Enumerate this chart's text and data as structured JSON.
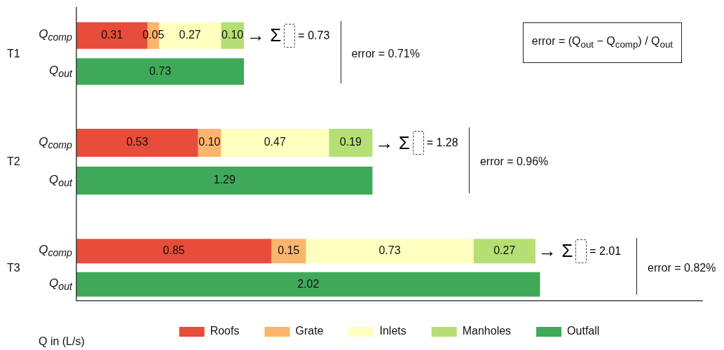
{
  "chart_data": [
    {
      "type": "bar",
      "orientation": "horizontal",
      "stacked": true,
      "ylabel": "T1",
      "categories": [
        "Q$_{comp}$",
        "Q$_{out}$"
      ],
      "tick_labels": "y",
      "legend": false,
      "series": [
        {
          "color": "#e84c3a",
          "values": [
            0.31,
            null
          ],
          "value_labels": [
            "0.31",
            null
          ]
        },
        {
          "color": "#fdb56b",
          "values": [
            0.05,
            null
          ],
          "value_labels": [
            "0.05",
            null
          ]
        },
        {
          "color": "#ffffc0",
          "values": [
            0.27,
            null
          ],
          "value_labels": [
            "0.27",
            null
          ]
        },
        {
          "color": "#b5df74",
          "values": [
            0.1,
            null
          ],
          "value_labels": [
            "0.10",
            null
          ]
        },
        {
          "color": "#3fa95a",
          "values": [
            null,
            0.73
          ],
          "value_labels": [
            null,
            "0.73"
          ]
        }
      ],
      "annotations": [
        "→ Σ = 0.73",
        "error = 0.71%",
        "error = (Q$_{out}$ − Q$_{comp}$) / Q$_{out}$"
      ]
    },
    {
      "type": "bar",
      "orientation": "horizontal",
      "stacked": true,
      "ylabel": "T2",
      "categories": [
        "Q$_{comp}$",
        "Q$_{out}$"
      ],
      "tick_labels": "y",
      "legend": false,
      "series": [
        {
          "color": "#e84c3a",
          "values": [
            0.53,
            null
          ],
          "value_labels": [
            "0.53",
            null
          ]
        },
        {
          "color": "#fdb56b",
          "values": [
            0.1,
            null
          ],
          "value_labels": [
            "0.10",
            null
          ]
        },
        {
          "color": "#ffffc0",
          "values": [
            0.47,
            null
          ],
          "value_labels": [
            "0.47",
            null
          ]
        },
        {
          "color": "#b5df74",
          "values": [
            0.19,
            null
          ],
          "value_labels": [
            "0.19",
            null
          ]
        },
        {
          "color": "#3fa95a",
          "values": [
            null,
            1.29
          ],
          "value_labels": [
            null,
            "1.29"
          ]
        }
      ],
      "annotations": [
        "→ Σ = 1.28",
        "error = 0.96%"
      ]
    },
    {
      "type": "bar",
      "orientation": "horizontal",
      "stacked": true,
      "ylabel": "T3",
      "xlabel": "Q in (L/s)",
      "categories": [
        "Q$_{comp}$",
        "Q$_{out}$"
      ],
      "tick_labels": "y",
      "legend": "bottom",
      "series": [
        {
          "name": "Roofs",
          "color": "#e84c3a",
          "values": [
            0.85,
            null
          ],
          "value_labels": [
            "0.85",
            null
          ]
        },
        {
          "name": "Grate",
          "color": "#fdb56b",
          "values": [
            0.15,
            null
          ],
          "value_labels": [
            "0.15",
            null
          ]
        },
        {
          "name": "Inlets",
          "color": "#ffffc0",
          "values": [
            0.73,
            null
          ],
          "value_labels": [
            "0.73",
            null
          ]
        },
        {
          "name": "Manholes",
          "color": "#b5df74",
          "values": [
            0.27,
            null
          ],
          "value_labels": [
            "0.27",
            null
          ]
        },
        {
          "name": "Outfall",
          "color": "#3fa95a",
          "values": [
            null,
            2.02
          ],
          "value_labels": [
            null,
            "2.02"
          ]
        }
      ],
      "annotations": [
        "→ Σ = 2.01",
        "error = 0.82%"
      ]
    }
  ]
}
